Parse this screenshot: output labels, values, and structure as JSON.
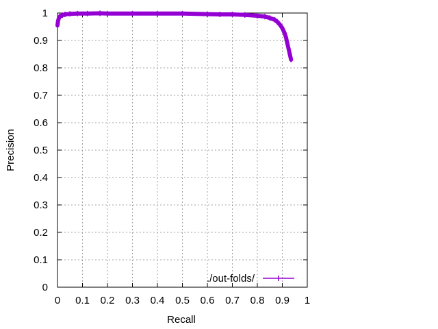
{
  "chart_data": {
    "type": "line",
    "title": "",
    "xlabel": "Recall",
    "ylabel": "Precision",
    "xlim": [
      0,
      1
    ],
    "ylim": [
      0,
      1
    ],
    "x_ticks": [
      "0",
      "0.1",
      "0.2",
      "0.3",
      "0.4",
      "0.5",
      "0.6",
      "0.7",
      "0.8",
      "0.9",
      "1"
    ],
    "y_ticks": [
      "0",
      "0.1",
      "0.2",
      "0.3",
      "0.4",
      "0.5",
      "0.6",
      "0.7",
      "0.8",
      "0.9",
      "1"
    ],
    "grid": true,
    "legend_position": "bottom-right",
    "series": [
      {
        "name": "./out-folds/",
        "color": "#9400d3",
        "x": [
          0.0,
          0.002,
          0.005,
          0.01,
          0.02,
          0.03,
          0.05,
          0.08,
          0.12,
          0.17,
          0.2,
          0.3,
          0.4,
          0.5,
          0.6,
          0.65,
          0.7,
          0.75,
          0.8,
          0.83,
          0.85,
          0.87,
          0.88,
          0.89,
          0.9,
          0.91,
          0.915,
          0.92,
          0.925,
          0.93,
          0.935
        ],
        "y": [
          0.955,
          0.97,
          0.98,
          0.988,
          0.992,
          0.995,
          0.997,
          0.998,
          0.998,
          0.999,
          0.998,
          0.998,
          0.998,
          0.998,
          0.996,
          0.995,
          0.995,
          0.993,
          0.99,
          0.987,
          0.982,
          0.975,
          0.968,
          0.958,
          0.945,
          0.925,
          0.91,
          0.89,
          0.87,
          0.85,
          0.83
        ]
      }
    ]
  }
}
